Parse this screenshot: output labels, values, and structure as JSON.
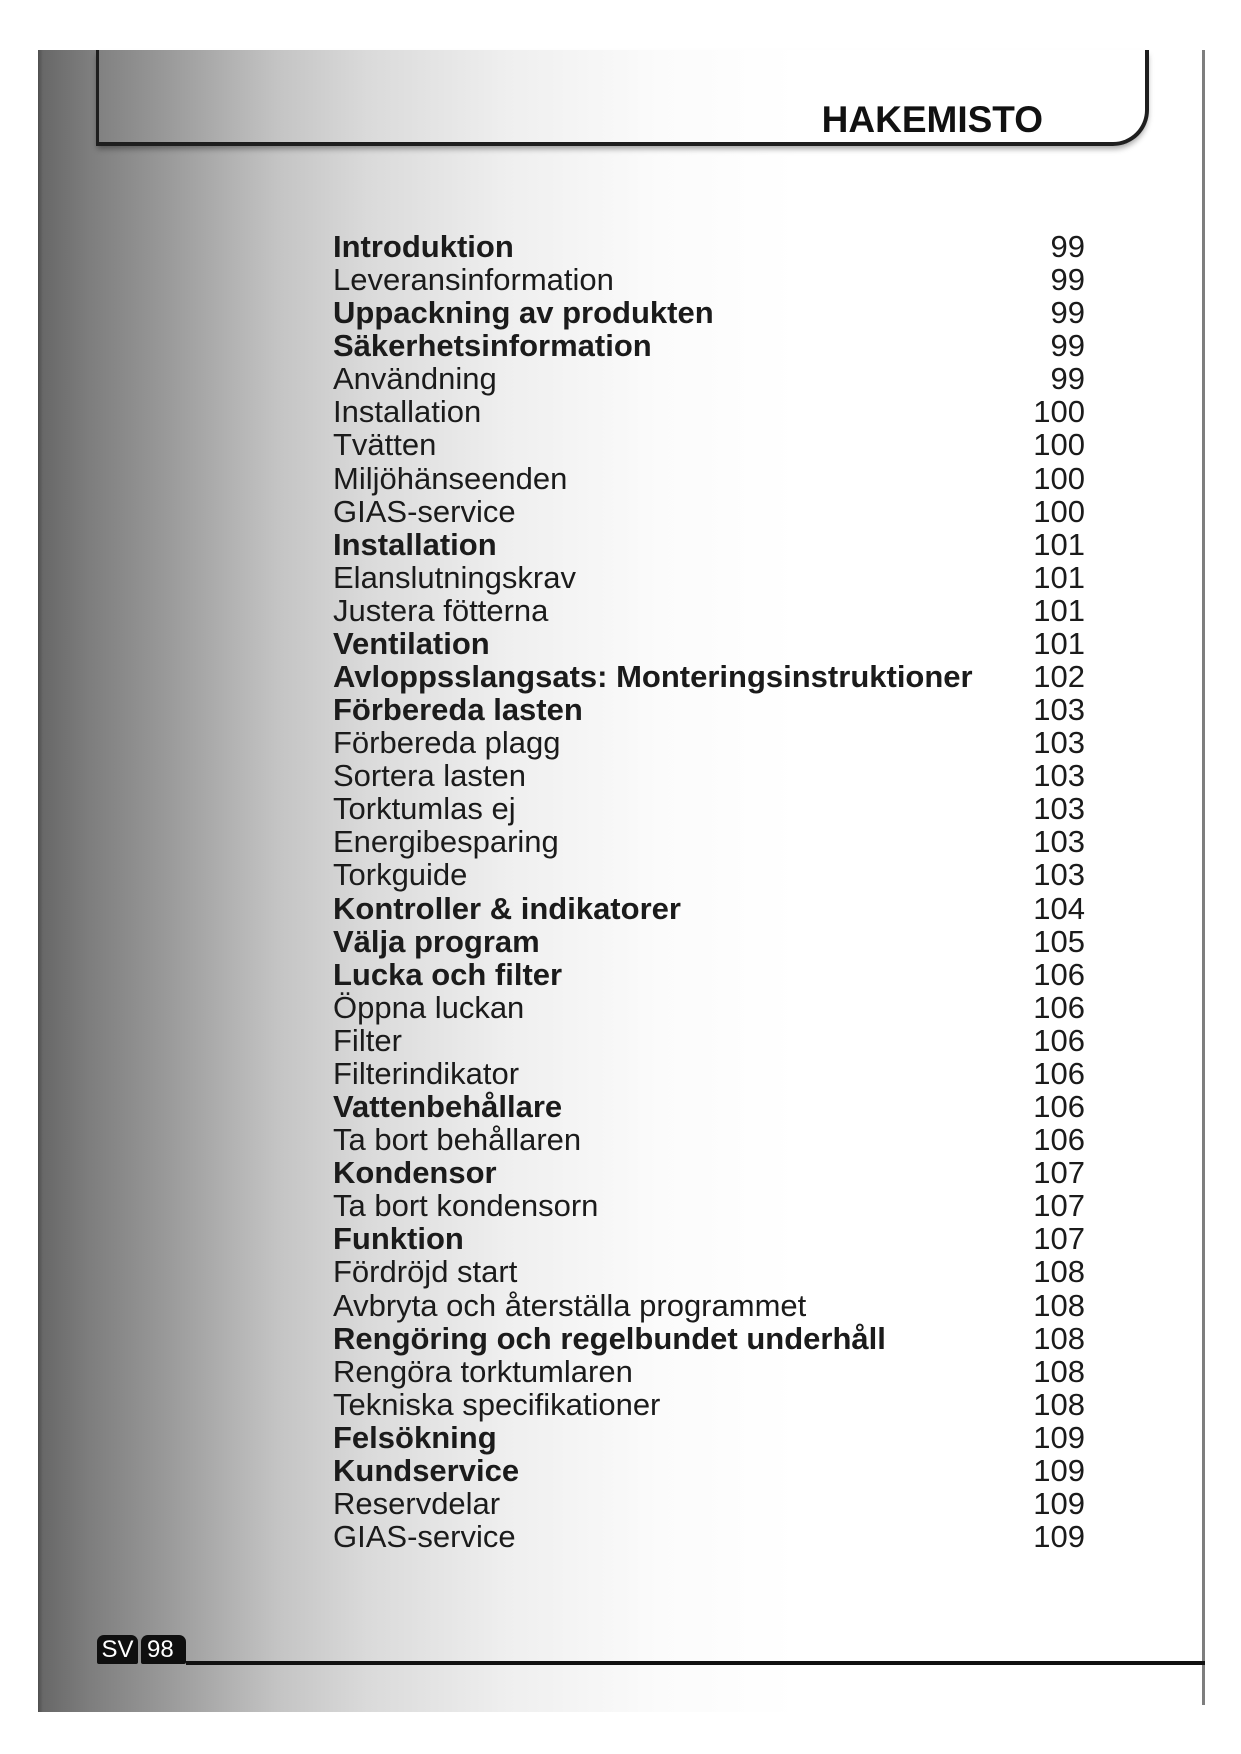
{
  "header": {
    "title": "HAKEMISTO"
  },
  "toc": {
    "items": [
      {
        "label": "Introduktion",
        "page": "99",
        "bold": true
      },
      {
        "label": "Leveransinformation",
        "page": "99",
        "bold": false
      },
      {
        "label": "Uppackning av produkten",
        "page": "99",
        "bold": true
      },
      {
        "label": "Säkerhetsinformation",
        "page": "99",
        "bold": true
      },
      {
        "label": "Användning",
        "page": "99",
        "bold": false
      },
      {
        "label": "Installation",
        "page": "100",
        "bold": false
      },
      {
        "label": "Tvätten",
        "page": "100",
        "bold": false
      },
      {
        "label": "Miljöhänseenden",
        "page": "100",
        "bold": false
      },
      {
        "label": "GIAS-service",
        "page": "100",
        "bold": false
      },
      {
        "label": "Installation",
        "page": "101",
        "bold": true
      },
      {
        "label": "Elanslutningskrav",
        "page": "101",
        "bold": false
      },
      {
        "label": "Justera fötterna",
        "page": "101",
        "bold": false
      },
      {
        "label": "Ventilation",
        "page": "101",
        "bold": true
      },
      {
        "label": "Avloppsslangsats: Monteringsinstruktioner",
        "page": "102",
        "bold": true
      },
      {
        "label": "Förbereda lasten",
        "page": "103",
        "bold": true
      },
      {
        "label": "Förbereda plagg",
        "page": "103",
        "bold": false
      },
      {
        "label": "Sortera lasten",
        "page": "103",
        "bold": false
      },
      {
        "label": "Torktumlas ej",
        "page": "103",
        "bold": false
      },
      {
        "label": "Energibesparing",
        "page": "103",
        "bold": false
      },
      {
        "label": "Torkguide",
        "page": "103",
        "bold": false
      },
      {
        "label": "Kontroller & indikatorer",
        "page": "104",
        "bold": true
      },
      {
        "label": "Välja program",
        "page": "105",
        "bold": true
      },
      {
        "label": "Lucka och filter",
        "page": "106",
        "bold": true
      },
      {
        "label": "Öppna luckan",
        "page": "106",
        "bold": false
      },
      {
        "label": "Filter",
        "page": "106",
        "bold": false
      },
      {
        "label": "Filterindikator",
        "page": "106",
        "bold": false
      },
      {
        "label": "Vattenbehållare",
        "page": "106",
        "bold": true
      },
      {
        "label": "Ta bort behållaren",
        "page": "106",
        "bold": false
      },
      {
        "label": "Kondensor",
        "page": "107",
        "bold": true
      },
      {
        "label": "Ta bort kondensorn",
        "page": "107",
        "bold": false
      },
      {
        "label": "Funktion",
        "page": "107",
        "bold": true
      },
      {
        "label": "Fördröjd start",
        "page": "108",
        "bold": false
      },
      {
        "label": "Avbryta och återställa programmet",
        "page": "108",
        "bold": false
      },
      {
        "label": "Rengöring och regelbundet underhåll",
        "page": "108",
        "bold": true
      },
      {
        "label": "Rengöra torktumlaren",
        "page": "108",
        "bold": false
      },
      {
        "label": "Tekniska specifikationer",
        "page": "108",
        "bold": false
      },
      {
        "label": "Felsökning",
        "page": "109",
        "bold": true
      },
      {
        "label": "Kundservice",
        "page": "109",
        "bold": true
      },
      {
        "label": "Reservdelar",
        "page": "109",
        "bold": false
      },
      {
        "label": "GIAS-service",
        "page": "109",
        "bold": false
      }
    ]
  },
  "footer": {
    "language": "SV",
    "page_number": "98"
  },
  "colors": {
    "text": "#1b1b1b",
    "tab_background": "#0f0f0f",
    "rule": "#111111",
    "edge_rule": "#7e7e7e"
  }
}
